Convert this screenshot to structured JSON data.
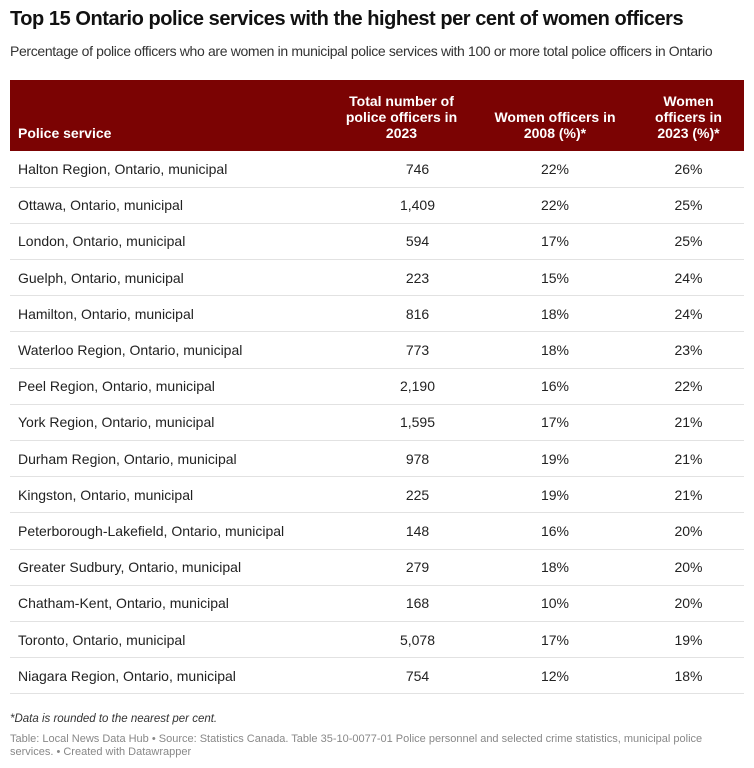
{
  "chart_data": {
    "type": "table",
    "title": "Top 15 Ontario police services with the highest per cent of women officers",
    "subtitle": "Percentage of police officers who are women in municipal police services with 100 or more total police officers in Ontario",
    "columns": [
      "Police service",
      "Total number of police officers in 2023",
      "Women officers in 2008 (%)*",
      "Women officers in 2023 (%)*"
    ],
    "rows": [
      [
        "Halton Region, Ontario, municipal",
        "746",
        "22%",
        "26%"
      ],
      [
        "Ottawa, Ontario, municipal",
        "1,409",
        "22%",
        "25%"
      ],
      [
        "London, Ontario, municipal",
        "594",
        "17%",
        "25%"
      ],
      [
        "Guelph, Ontario, municipal",
        "223",
        "15%",
        "24%"
      ],
      [
        "Hamilton, Ontario, municipal",
        "816",
        "18%",
        "24%"
      ],
      [
        "Waterloo Region, Ontario, municipal",
        "773",
        "18%",
        "23%"
      ],
      [
        "Peel Region, Ontario, municipal",
        "2,190",
        "16%",
        "22%"
      ],
      [
        "York Region, Ontario, municipal",
        "1,595",
        "17%",
        "21%"
      ],
      [
        "Durham Region, Ontario, municipal",
        "978",
        "19%",
        "21%"
      ],
      [
        "Kingston, Ontario, municipal",
        "225",
        "19%",
        "21%"
      ],
      [
        "Peterborough-Lakefield, Ontario, municipal",
        "148",
        "16%",
        "20%"
      ],
      [
        "Greater Sudbury, Ontario, municipal",
        "279",
        "18%",
        "20%"
      ],
      [
        "Chatham-Kent, Ontario, municipal",
        "168",
        "10%",
        "20%"
      ],
      [
        "Toronto, Ontario, municipal",
        "5,078",
        "17%",
        "19%"
      ],
      [
        "Niagara Region, Ontario, municipal",
        "754",
        "12%",
        "18%"
      ]
    ],
    "note": "*Data is rounded to the nearest per cent.",
    "source": "Table: Local News Data Hub • Source: Statistics Canada. Table 35-10-0077-01 Police personnel and selected crime statistics, municipal police services. • Created with Datawrapper",
    "header_color": "#7b0303"
  }
}
